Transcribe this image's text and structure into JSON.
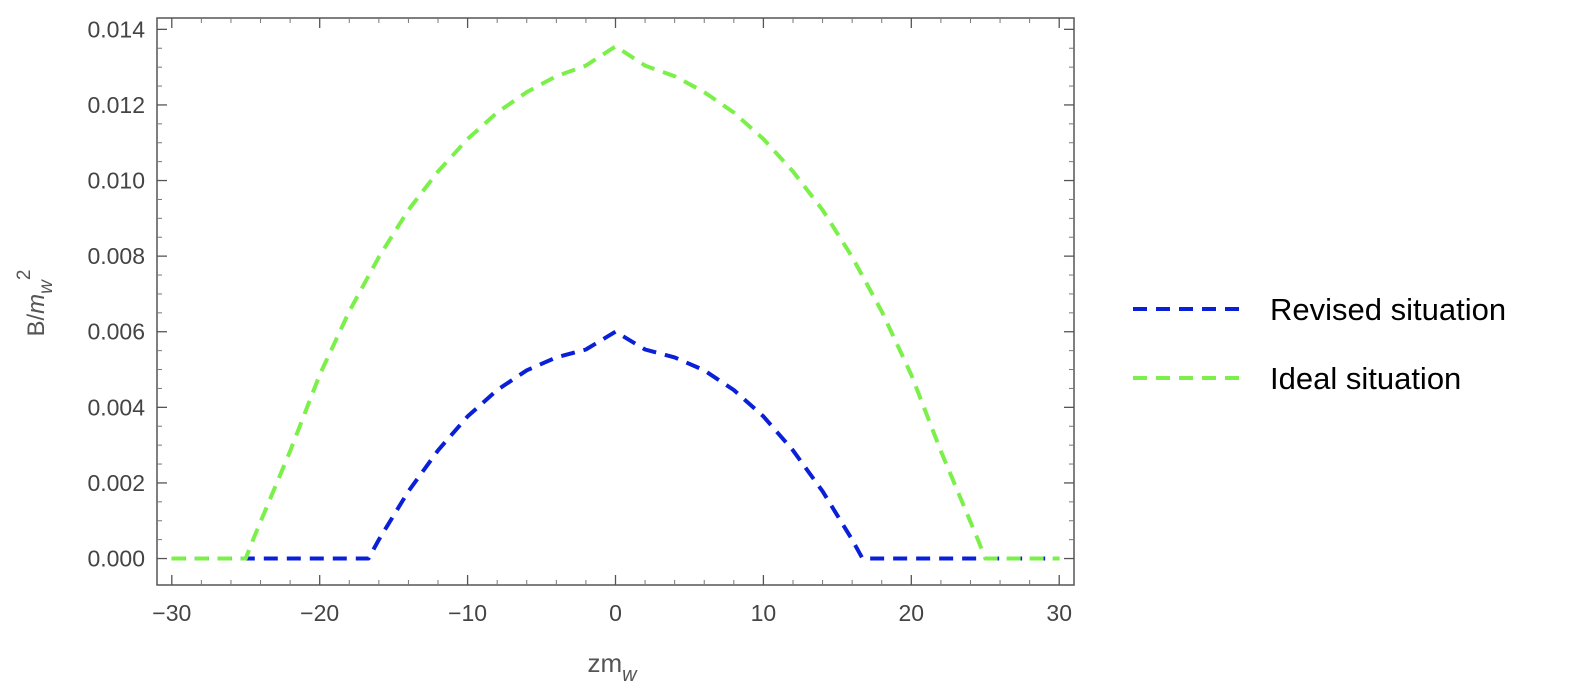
{
  "chart_data": {
    "type": "line",
    "xlabel": {
      "main": "zm",
      "sub": "w"
    },
    "ylabel": {
      "main": "B/",
      "italic": "m",
      "sub": "w",
      "sup": "2"
    },
    "xlim": [
      -31,
      31
    ],
    "ylim": [
      -0.0007,
      0.0143
    ],
    "x_ticks": [
      -30,
      -20,
      -10,
      0,
      10,
      20,
      30
    ],
    "x_tick_labels": [
      "−30",
      "−20",
      "−10",
      "0",
      "10",
      "20",
      "30"
    ],
    "y_ticks": [
      0,
      0.002,
      0.004,
      0.006,
      0.008,
      0.01,
      0.012,
      0.014
    ],
    "y_tick_labels": [
      "0.000",
      "0.002",
      "0.004",
      "0.006",
      "0.008",
      "0.010",
      "0.012",
      "0.014"
    ],
    "grid": false,
    "legend_position": "right",
    "series": [
      {
        "name": "Revised situation",
        "color": "#0a1fd8",
        "style": "dashed",
        "x": [
          -30,
          -25,
          -20,
          -16.7,
          -16,
          -14,
          -12,
          -10,
          -8,
          -6,
          -4,
          -2,
          0,
          2,
          4,
          6,
          8,
          10,
          12,
          14,
          16,
          16.7,
          20,
          25,
          30
        ],
        "y": [
          0,
          0,
          0,
          0,
          0.0005,
          0.00178,
          0.00286,
          0.00376,
          0.00446,
          0.00498,
          0.00532,
          0.00553,
          0.006,
          0.00553,
          0.00532,
          0.00498,
          0.00446,
          0.00376,
          0.00286,
          0.00178,
          0.0005,
          0,
          0,
          0,
          0
        ]
      },
      {
        "name": "Ideal situation",
        "color": "#7cf04a",
        "style": "dashed",
        "x": [
          -30,
          -25,
          -24.5,
          -22,
          -20,
          -18,
          -16,
          -14,
          -12,
          -10,
          -8,
          -6,
          -4,
          -2,
          0,
          2,
          4,
          6,
          8,
          10,
          12,
          14,
          16,
          18,
          20,
          22,
          24.5,
          25,
          30
        ],
        "y": [
          0,
          0,
          0.0005,
          0.00284,
          0.00486,
          0.00654,
          0.00798,
          0.00922,
          0.01024,
          0.0111,
          0.0118,
          0.01234,
          0.01276,
          0.01304,
          0.01355,
          0.01304,
          0.01276,
          0.01234,
          0.0118,
          0.0111,
          0.01024,
          0.00922,
          0.00798,
          0.00654,
          0.00486,
          0.00284,
          0.0005,
          0,
          0
        ]
      }
    ]
  }
}
